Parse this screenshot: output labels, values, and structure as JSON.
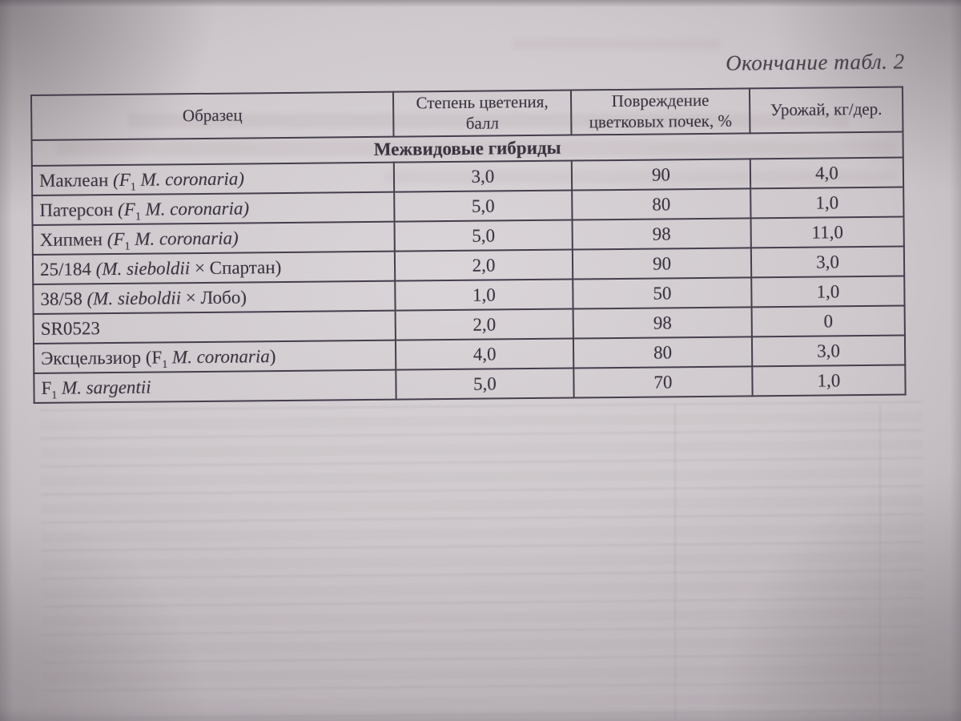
{
  "page": {
    "caption": "Окончание табл. 2"
  },
  "table": {
    "columns": [
      {
        "label": "Образец"
      },
      {
        "label": "Степень цветения,\nбалл"
      },
      {
        "label": "Повреждение\nцветковых почек, %"
      },
      {
        "label": "Урожай, кг/дер."
      }
    ],
    "section": "Межвидовые гибриды",
    "rows": [
      {
        "name": [
          {
            "t": "Маклеан "
          },
          {
            "t": "(F",
            "i": 1
          },
          {
            "t": "1",
            "sub": 1
          },
          {
            "t": " M. coronaria)",
            "i": 1
          }
        ],
        "bloom": "3,0",
        "damage": "90",
        "yield": "4,0"
      },
      {
        "name": [
          {
            "t": "Патерсон "
          },
          {
            "t": "(F",
            "i": 1
          },
          {
            "t": "1",
            "sub": 1
          },
          {
            "t": " M. coronaria)",
            "i": 1
          }
        ],
        "bloom": "5,0",
        "damage": "80",
        "yield": "1,0"
      },
      {
        "name": [
          {
            "t": "Хипмен "
          },
          {
            "t": "(F",
            "i": 1
          },
          {
            "t": "1",
            "sub": 1
          },
          {
            "t": " M. coronaria)",
            "i": 1
          }
        ],
        "bloom": "5,0",
        "damage": "98",
        "yield": "11,0"
      },
      {
        "name": [
          {
            "t": "25/184 "
          },
          {
            "t": "(M. sieboldii",
            "i": 1
          },
          {
            "t": " × Спартан)"
          }
        ],
        "bloom": "2,0",
        "damage": "90",
        "yield": "3,0"
      },
      {
        "name": [
          {
            "t": "38/58 "
          },
          {
            "t": "(M. sieboldii",
            "i": 1
          },
          {
            "t": " × Лобо)"
          }
        ],
        "bloom": "1,0",
        "damage": "50",
        "yield": "1,0"
      },
      {
        "name": [
          {
            "t": "SR0523"
          }
        ],
        "bloom": "2,0",
        "damage": "98",
        "yield": "0"
      },
      {
        "name": [
          {
            "t": "Эксцельзиор (F"
          },
          {
            "t": "1",
            "sub": 1
          },
          {
            "t": " M. coronaria",
            "i": 1
          },
          {
            "t": ")"
          }
        ],
        "bloom": "4,0",
        "damage": "80",
        "yield": "3,0"
      },
      {
        "name": [
          {
            "t": "F"
          },
          {
            "t": "1",
            "sub": 1
          },
          {
            "t": " M. sargentii",
            "i": 1
          }
        ],
        "bloom": "5,0",
        "damage": "70",
        "yield": "1,0"
      }
    ]
  },
  "colors": {
    "ink": "#3a3340",
    "table_line": "#443e4d",
    "page_center": "#d9d4d8",
    "page_edge": "#b3acb1"
  }
}
